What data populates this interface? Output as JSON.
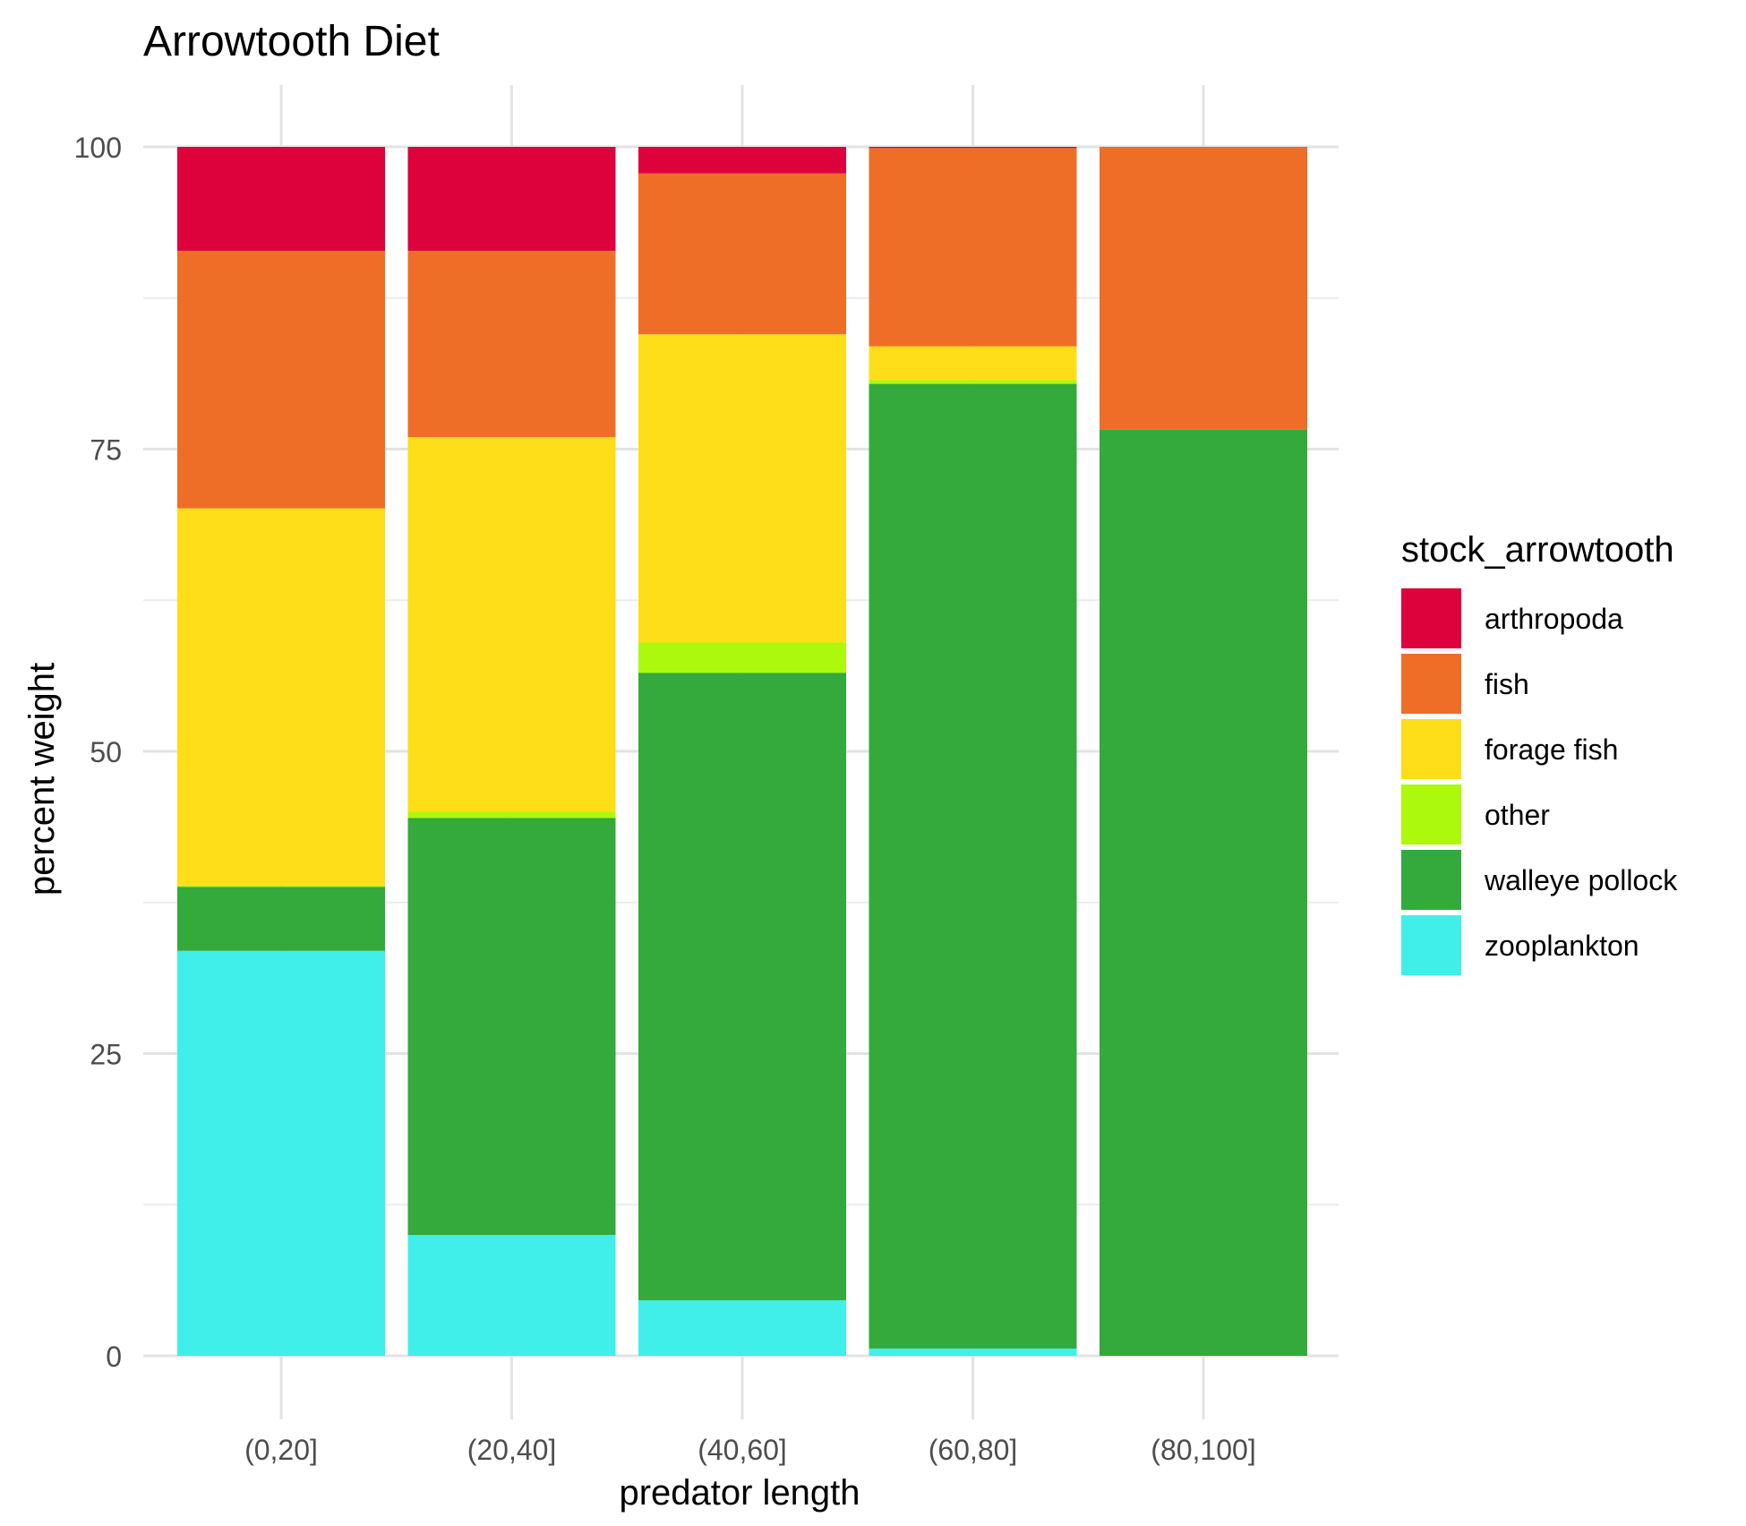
{
  "chart_data": {
    "type": "bar",
    "stacked": true,
    "title": "Arrowtooth Diet",
    "xlabel": "predator length",
    "ylabel": "percent weight",
    "ylim": [
      0,
      100
    ],
    "yticks": [
      0,
      25,
      50,
      75,
      100
    ],
    "grid": true,
    "legend_position": "right",
    "legend_title": "stock_arrowtooth",
    "categories": [
      "(0,20]",
      "(20,40]",
      "(40,60]",
      "(60,80]",
      "(80,100]"
    ],
    "series": [
      {
        "name": "zooplankton",
        "color": "#40EFEA",
        "values": [
          33.5,
          10.0,
          4.6,
          0.6,
          0.0
        ]
      },
      {
        "name": "walleye pollock",
        "color": "#34A93C",
        "values": [
          5.3,
          34.5,
          51.9,
          79.8,
          76.6
        ]
      },
      {
        "name": "other",
        "color": "#ADF90D",
        "values": [
          0.1,
          0.5,
          2.5,
          0.3,
          0.0
        ]
      },
      {
        "name": "forage fish",
        "color": "#FDDE19",
        "values": [
          31.2,
          31.0,
          25.5,
          2.8,
          0.0
        ]
      },
      {
        "name": "fish",
        "color": "#EE6E28",
        "values": [
          21.3,
          15.4,
          13.3,
          16.4,
          23.4
        ]
      },
      {
        "name": "arthropoda",
        "color": "#DD023C",
        "values": [
          8.6,
          8.6,
          2.2,
          0.1,
          0.0
        ]
      }
    ],
    "legend_order": [
      "arthropoda",
      "fish",
      "forage fish",
      "other",
      "walleye pollock",
      "zooplankton"
    ]
  }
}
